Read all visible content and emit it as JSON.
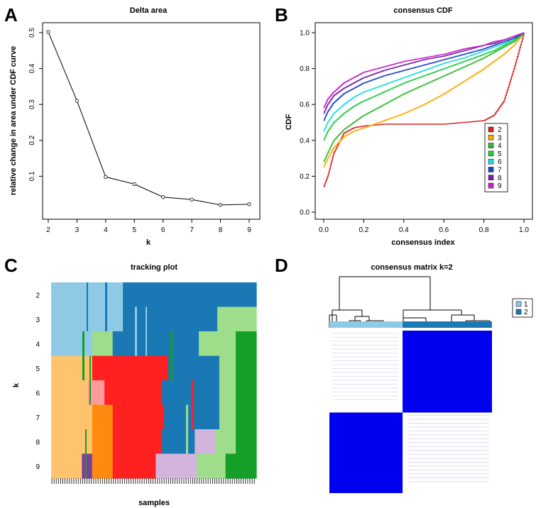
{
  "chart_data": [
    {
      "panel": "A",
      "type": "line",
      "title": "Delta area",
      "xlabel": "k",
      "ylabel": "relative change in area under CDF curve",
      "x": [
        2,
        3,
        4,
        5,
        6,
        7,
        8,
        9
      ],
      "values": [
        0.502,
        0.31,
        0.098,
        0.078,
        0.042,
        0.035,
        0.02,
        0.022
      ],
      "xlim": [
        2,
        9
      ],
      "ylim": [
        0,
        0.5
      ],
      "xticks": [
        "2",
        "3",
        "4",
        "5",
        "6",
        "7",
        "8",
        "9"
      ],
      "yticks": [
        "0.1",
        "0.2",
        "0.3",
        "0.4",
        "0.5"
      ]
    },
    {
      "panel": "B",
      "type": "line",
      "title": "consensus CDF",
      "xlabel": "consensus index",
      "ylabel": "CDF",
      "xlim": [
        0,
        1
      ],
      "ylim": [
        0,
        1
      ],
      "xticks": [
        "0.0",
        "0.2",
        "0.4",
        "0.6",
        "0.8",
        "1.0"
      ],
      "yticks": [
        "0.0",
        "0.2",
        "0.4",
        "0.6",
        "0.8",
        "1.0"
      ],
      "legend_position": "right",
      "x": [
        0.0,
        0.02,
        0.05,
        0.1,
        0.15,
        0.2,
        0.3,
        0.4,
        0.5,
        0.6,
        0.7,
        0.8,
        0.85,
        0.9,
        0.95,
        1.0
      ],
      "series": [
        {
          "name": "2",
          "color": "#dd2222",
          "values": [
            0.14,
            0.2,
            0.33,
            0.44,
            0.47,
            0.48,
            0.49,
            0.49,
            0.49,
            0.49,
            0.5,
            0.51,
            0.54,
            0.62,
            0.8,
            1.0
          ]
        },
        {
          "name": "3",
          "color": "#ffaa00",
          "values": [
            0.25,
            0.3,
            0.36,
            0.42,
            0.45,
            0.47,
            0.51,
            0.55,
            0.6,
            0.66,
            0.73,
            0.8,
            0.84,
            0.88,
            0.93,
            1.0
          ]
        },
        {
          "name": "4",
          "color": "#33bb33",
          "values": [
            0.28,
            0.33,
            0.4,
            0.46,
            0.5,
            0.54,
            0.6,
            0.66,
            0.71,
            0.76,
            0.81,
            0.86,
            0.89,
            0.92,
            0.95,
            1.0
          ]
        },
        {
          "name": "5",
          "color": "#22cc44",
          "values": [
            0.4,
            0.45,
            0.5,
            0.55,
            0.59,
            0.62,
            0.67,
            0.72,
            0.76,
            0.8,
            0.84,
            0.88,
            0.9,
            0.93,
            0.96,
            1.0
          ]
        },
        {
          "name": "6",
          "color": "#22dddd",
          "values": [
            0.45,
            0.5,
            0.55,
            0.6,
            0.64,
            0.67,
            0.71,
            0.75,
            0.79,
            0.83,
            0.86,
            0.9,
            0.92,
            0.94,
            0.97,
            1.0
          ]
        },
        {
          "name": "7",
          "color": "#2244cc",
          "values": [
            0.51,
            0.56,
            0.61,
            0.66,
            0.69,
            0.72,
            0.76,
            0.79,
            0.82,
            0.85,
            0.88,
            0.91,
            0.93,
            0.95,
            0.97,
            1.0
          ]
        },
        {
          "name": "8",
          "color": "#7722aa",
          "values": [
            0.55,
            0.6,
            0.65,
            0.69,
            0.72,
            0.75,
            0.79,
            0.82,
            0.85,
            0.87,
            0.9,
            0.93,
            0.94,
            0.96,
            0.98,
            1.0
          ]
        },
        {
          "name": "9",
          "color": "#cc22cc",
          "values": [
            0.58,
            0.63,
            0.67,
            0.72,
            0.75,
            0.78,
            0.81,
            0.84,
            0.86,
            0.88,
            0.91,
            0.93,
            0.95,
            0.96,
            0.98,
            1.0
          ]
        }
      ]
    },
    {
      "panel": "C",
      "type": "heatmap",
      "title": "tracking plot",
      "xlabel": "samples",
      "ylabel": "k",
      "rows": [
        "2",
        "3",
        "4",
        "5",
        "6",
        "7",
        "8",
        "9"
      ],
      "segments": [
        [
          [
            "#8ecae6",
            0.35
          ],
          [
            "#1a78b4",
            0.65
          ]
        ],
        [
          [
            "#8ecae6",
            0.35
          ],
          [
            "#1a78b4",
            0.46
          ],
          [
            "#9ede8a",
            0.19
          ]
        ],
        [
          [
            "#8ecae6",
            0.2
          ],
          [
            "#9ede8a",
            0.1
          ],
          [
            "#1a78b4",
            0.42
          ],
          [
            "#9ede8a",
            0.18
          ],
          [
            "#14a028",
            0.1
          ]
        ],
        [
          [
            "#ffc36e",
            0.2
          ],
          [
            "#ff2020",
            0.05
          ],
          [
            "#ff2020",
            0.1
          ],
          [
            "#ff2020",
            0.22
          ],
          [
            "#1a78b4",
            0.25
          ],
          [
            "#9ede8a",
            0.08
          ],
          [
            "#14a028",
            0.1
          ]
        ],
        [
          [
            "#ffc36e",
            0.18
          ],
          [
            "#ff9a9a",
            0.08
          ],
          [
            "#ff2020",
            0.06
          ],
          [
            "#ff2020",
            0.22
          ],
          [
            "#1a78b4",
            0.28
          ],
          [
            "#9ede8a",
            0.08
          ],
          [
            "#14a028",
            0.1
          ]
        ],
        [
          [
            "#ffc36e",
            0.2
          ],
          [
            "#ff8a10",
            0.1
          ],
          [
            "#ff2020",
            0.05
          ],
          [
            "#ff2020",
            0.2
          ],
          [
            "#1a78b4",
            0.27
          ],
          [
            "#9ede8a",
            0.08
          ],
          [
            "#14a028",
            0.1
          ]
        ],
        [
          [
            "#ffc36e",
            0.2
          ],
          [
            "#ff8a10",
            0.1
          ],
          [
            "#ff2020",
            0.04
          ],
          [
            "#ff2020",
            0.2
          ],
          [
            "#1a78b4",
            0.16
          ],
          [
            "#d2b4dc",
            0.1
          ],
          [
            "#9ede8a",
            0.1
          ],
          [
            "#14a028",
            0.1
          ]
        ],
        [
          [
            "#ffc36e",
            0.15
          ],
          [
            "#7d3c98",
            0.05
          ],
          [
            "#ff8a10",
            0.1
          ],
          [
            "#ff2020",
            0.21
          ],
          [
            "#d2b4dc",
            0.2
          ],
          [
            "#9ede8a",
            0.14
          ],
          [
            "#14a028",
            0.15
          ]
        ]
      ]
    },
    {
      "panel": "D",
      "type": "heatmap",
      "title": "consensus matrix k=2",
      "clusters": [
        {
          "name": "1",
          "color": "#8ecae6",
          "share": 0.45
        },
        {
          "name": "2",
          "color": "#1a78b4",
          "share": 0.55
        }
      ],
      "block_color": "#0000ee",
      "background_color": "#ffffff"
    }
  ]
}
